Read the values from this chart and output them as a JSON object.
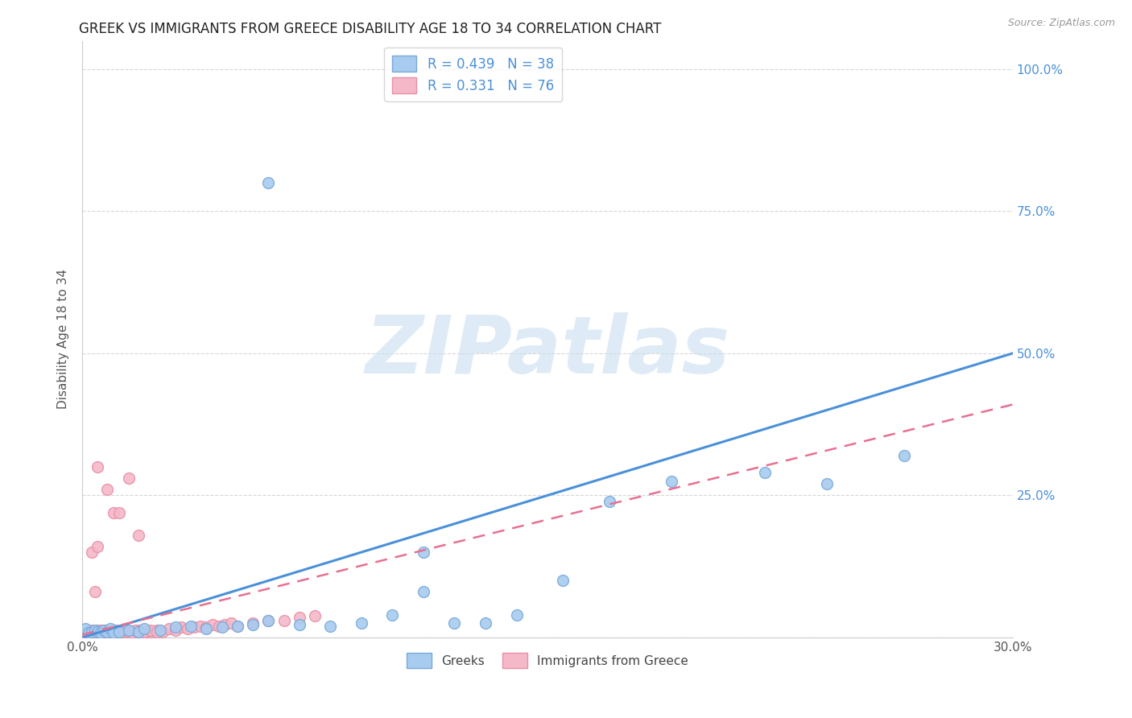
{
  "title": "GREEK VS IMMIGRANTS FROM GREECE DISABILITY AGE 18 TO 34 CORRELATION CHART",
  "source": "Source: ZipAtlas.com",
  "ylabel": "Disability Age 18 to 34",
  "xlim": [
    0.0,
    0.3
  ],
  "ylim": [
    0.0,
    1.05
  ],
  "xticks": [
    0.0,
    0.05,
    0.1,
    0.15,
    0.2,
    0.25,
    0.3
  ],
  "yticks": [
    0.0,
    0.25,
    0.5,
    0.75,
    1.0
  ],
  "ytick_labels": [
    "",
    "25.0%",
    "50.0%",
    "75.0%",
    "100.0%"
  ],
  "greek_color": "#A8CBF0",
  "greek_edge_color": "#7AAAD8",
  "immigrant_color": "#F5B8C8",
  "immigrant_edge_color": "#E890A8",
  "greek_line_color": "#4A90D9",
  "immigrant_line_color": "#E87090",
  "greek_R": 0.439,
  "greek_N": 38,
  "immigrant_R": 0.331,
  "immigrant_N": 76,
  "legend_label_greek": "Greeks",
  "legend_label_immigrant": "Immigrants from Greece",
  "watermark_text": "ZIPatlas",
  "greeks_x": [
    0.001,
    0.002,
    0.003,
    0.004,
    0.005,
    0.006,
    0.007,
    0.008,
    0.009,
    0.01,
    0.012,
    0.015,
    0.018,
    0.02,
    0.025,
    0.03,
    0.035,
    0.04,
    0.045,
    0.05,
    0.055,
    0.06,
    0.07,
    0.08,
    0.09,
    0.1,
    0.11,
    0.12,
    0.13,
    0.14,
    0.155,
    0.17,
    0.19,
    0.22,
    0.24,
    0.265,
    0.11,
    0.06
  ],
  "greeks_y": [
    0.015,
    0.008,
    0.01,
    0.012,
    0.01,
    0.008,
    0.012,
    0.01,
    0.015,
    0.008,
    0.01,
    0.012,
    0.01,
    0.015,
    0.012,
    0.018,
    0.02,
    0.015,
    0.018,
    0.02,
    0.022,
    0.03,
    0.022,
    0.02,
    0.025,
    0.04,
    0.08,
    0.025,
    0.025,
    0.04,
    0.1,
    0.24,
    0.275,
    0.29,
    0.27,
    0.32,
    0.15,
    0.8
  ],
  "immigrants_x": [
    0.001,
    0.002,
    0.002,
    0.003,
    0.003,
    0.004,
    0.004,
    0.005,
    0.005,
    0.006,
    0.006,
    0.007,
    0.007,
    0.008,
    0.008,
    0.009,
    0.009,
    0.01,
    0.01,
    0.011,
    0.011,
    0.012,
    0.013,
    0.014,
    0.015,
    0.016,
    0.017,
    0.018,
    0.019,
    0.02,
    0.022,
    0.024,
    0.026,
    0.028,
    0.03,
    0.032,
    0.034,
    0.036,
    0.038,
    0.04,
    0.042,
    0.044,
    0.046,
    0.048,
    0.05,
    0.055,
    0.06,
    0.065,
    0.07,
    0.075,
    0.003,
    0.004,
    0.005,
    0.006,
    0.007,
    0.008,
    0.009,
    0.01,
    0.011,
    0.012,
    0.013,
    0.014,
    0.015,
    0.016,
    0.017,
    0.018,
    0.019,
    0.02,
    0.022,
    0.024,
    0.005,
    0.008,
    0.01,
    0.012,
    0.015,
    0.018
  ],
  "immigrants_y": [
    0.008,
    0.01,
    0.005,
    0.008,
    0.012,
    0.006,
    0.01,
    0.008,
    0.012,
    0.006,
    0.01,
    0.008,
    0.012,
    0.006,
    0.01,
    0.008,
    0.006,
    0.01,
    0.008,
    0.012,
    0.008,
    0.01,
    0.008,
    0.012,
    0.01,
    0.008,
    0.01,
    0.012,
    0.01,
    0.008,
    0.01,
    0.012,
    0.01,
    0.015,
    0.012,
    0.018,
    0.015,
    0.018,
    0.02,
    0.018,
    0.022,
    0.02,
    0.022,
    0.025,
    0.02,
    0.025,
    0.03,
    0.03,
    0.035,
    0.038,
    0.15,
    0.08,
    0.16,
    0.012,
    0.01,
    0.008,
    0.01,
    0.012,
    0.01,
    0.008,
    0.01,
    0.012,
    0.01,
    0.008,
    0.012,
    0.01,
    0.008,
    0.01,
    0.012,
    0.01,
    0.3,
    0.26,
    0.22,
    0.22,
    0.28,
    0.18
  ]
}
